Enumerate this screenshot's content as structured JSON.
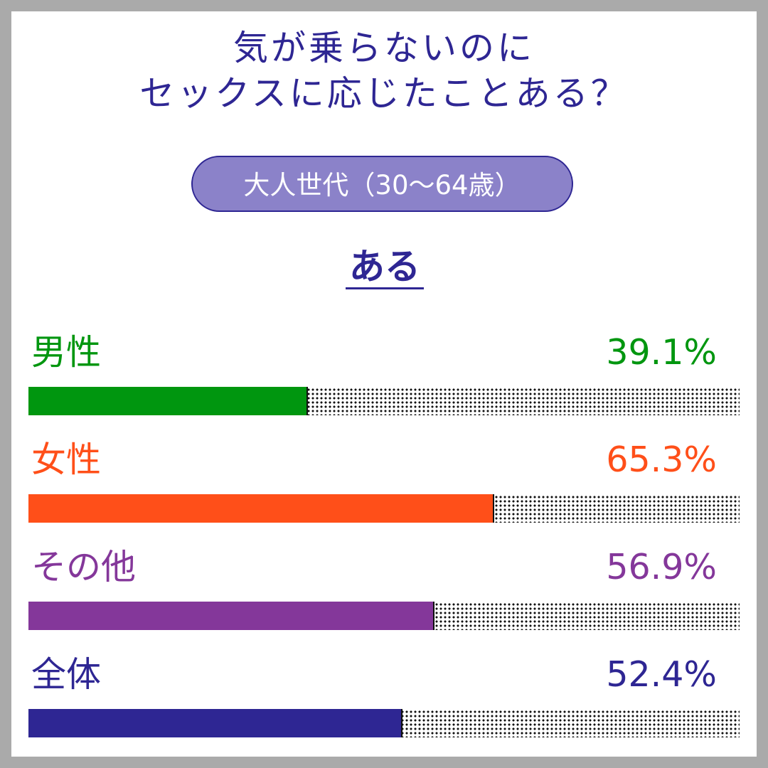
{
  "title": {
    "line1": "気が乗らないのに",
    "line2": "セックスに応じたことある？"
  },
  "subtitle_pill": "大人世代（30〜64歳）",
  "answer_label": "ある",
  "chart_data": {
    "type": "bar",
    "orientation": "horizontal",
    "title": "気が乗らないのに セックスに応じたことある？",
    "subtitle": "大人世代（30〜64歳）",
    "answer": "ある",
    "categories": [
      "男性",
      "女性",
      "その他",
      "全体"
    ],
    "values": [
      39.1,
      65.3,
      56.9,
      52.4
    ],
    "value_labels": [
      "39.1%",
      "65.3%",
      "56.9%",
      "52.4%"
    ],
    "colors": [
      "#00960f",
      "#ff4f19",
      "#84379a",
      "#2e2693"
    ],
    "xlim": [
      0,
      100
    ],
    "unit": "%"
  }
}
